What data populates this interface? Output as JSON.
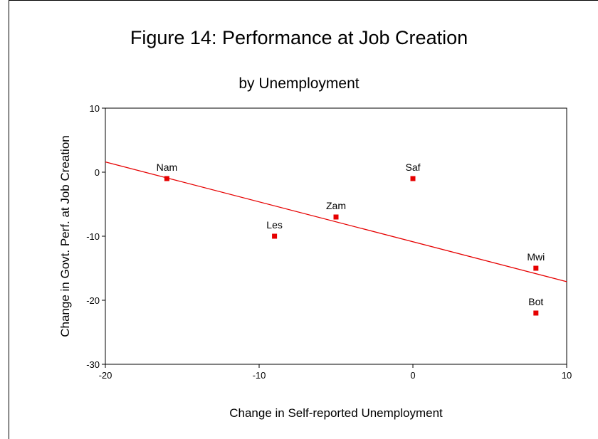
{
  "chart_data": {
    "type": "scatter",
    "title": "Figure 14:  Performance at Job Creation",
    "subtitle": "by Unemployment",
    "xlabel": "Change in Self-reported Unemployment",
    "ylabel": "Change in Govt. Perf. at Job Creation",
    "xlim": [
      -20,
      10
    ],
    "ylim": [
      -30,
      10
    ],
    "xticks": [
      -20,
      -10,
      0,
      10
    ],
    "yticks": [
      10,
      0,
      -10,
      -20,
      -30
    ],
    "grid": false,
    "marker_color": "#e60000",
    "line_color": "#e60000",
    "points": [
      {
        "label": "Nam",
        "x": -16,
        "y": -1
      },
      {
        "label": "Les",
        "x": -9,
        "y": -10
      },
      {
        "label": "Zam",
        "x": -5,
        "y": -7
      },
      {
        "label": "Saf",
        "x": 0,
        "y": -1
      },
      {
        "label": "Mwi",
        "x": 8,
        "y": -15
      },
      {
        "label": "Bot",
        "x": 8,
        "y": -22
      }
    ],
    "fit_line": {
      "x": [
        -20,
        10
      ],
      "y": [
        1.6,
        -17.1
      ]
    }
  }
}
